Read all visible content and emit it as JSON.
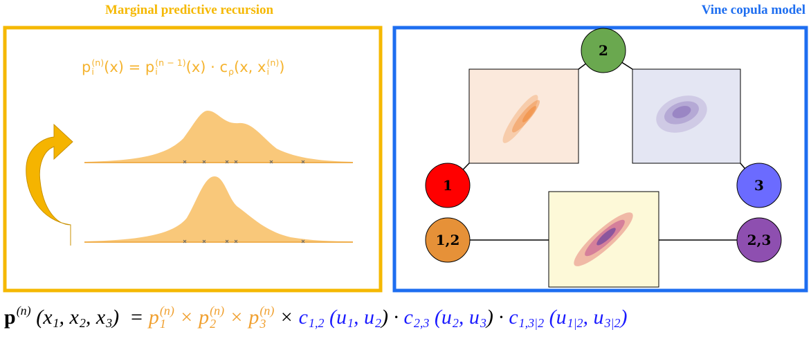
{
  "left_panel": {
    "title": "Marginal predictive recursion",
    "formula": [
      {
        "base": "p",
        "sub": "i",
        "sup": "(n)"
      },
      {
        "text": "(x) = "
      },
      {
        "base": "p",
        "sub": "i",
        "sup": "(n − 1)"
      },
      {
        "text": "(x) · "
      },
      {
        "base": "c",
        "sub": "ρ"
      },
      {
        "text": "(x, "
      },
      {
        "base": "x",
        "sub": "i",
        "sup": "(n)"
      },
      {
        "text": ")"
      }
    ]
  },
  "right_panel": {
    "title": "Vine copula model",
    "nodes": [
      {
        "label": "2"
      },
      {
        "label": "1"
      },
      {
        "label": "3"
      },
      {
        "label": "1,2"
      },
      {
        "label": "2,3"
      }
    ]
  },
  "bottom_formula": [
    {
      "base": "p",
      "sup": "(n)",
      "bold": true,
      "color": "#000000"
    },
    {
      "text": " (",
      "color": "#000000"
    },
    {
      "base": "x",
      "sub": "1",
      "color": "#000000"
    },
    {
      "text": ", ",
      "color": "#000000"
    },
    {
      "base": "x",
      "sub": "2",
      "color": "#000000"
    },
    {
      "text": ", ",
      "color": "#000000"
    },
    {
      "base": "x",
      "sub": "3",
      "color": "#000000"
    },
    {
      "text": ")  = ",
      "color": "#000000"
    },
    {
      "base": "p",
      "sub": "1",
      "sup": "(n)",
      "color": "#f0a030"
    },
    {
      "text": " × ",
      "color": "#f0a030"
    },
    {
      "base": "p",
      "sub": "2",
      "sup": "(n)",
      "color": "#f0a030"
    },
    {
      "text": " × ",
      "color": "#f0a030"
    },
    {
      "base": "p",
      "sub": "3",
      "sup": "(n)",
      "color": "#f0a030"
    },
    {
      "text": " × ",
      "color": "#000000"
    },
    {
      "base": "c",
      "sub": "1,2",
      "color": "#1a1aff"
    },
    {
      "text": " (",
      "color": "#1a1aff"
    },
    {
      "base": "u",
      "sub": "1",
      "color": "#1a1aff"
    },
    {
      "text": ", ",
      "color": "#1a1aff"
    },
    {
      "base": "u",
      "sub": "2",
      "color": "#1a1aff"
    },
    {
      "text": ") · ",
      "color": "#000000"
    },
    {
      "base": "c",
      "sub": "2,3",
      "color": "#1a1aff"
    },
    {
      "text": " (",
      "color": "#1a1aff"
    },
    {
      "base": "u",
      "sub": "2",
      "color": "#1a1aff"
    },
    {
      "text": ", ",
      "color": "#1a1aff"
    },
    {
      "base": "u",
      "sub": "3",
      "color": "#1a1aff"
    },
    {
      "text": ") · ",
      "color": "#000000"
    },
    {
      "base": "c",
      "sub": "1,3|2",
      "color": "#1a1aff"
    },
    {
      "text": " (",
      "color": "#1a1aff"
    },
    {
      "base": "u",
      "sub": "1|2",
      "color": "#1a1aff"
    },
    {
      "text": ", ",
      "color": "#1a1aff"
    },
    {
      "base": "u",
      "sub": "3|2",
      "color": "#1a1aff"
    },
    {
      "text": ")",
      "color": "#1a1aff"
    }
  ]
}
